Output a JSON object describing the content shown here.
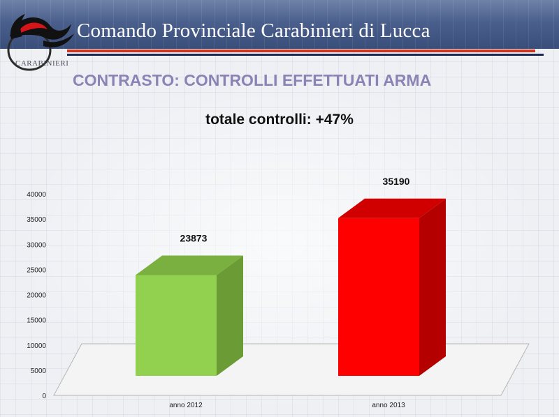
{
  "header": {
    "title": "Comando Provinciale Carabinieri di Lucca",
    "logo_text": "CARABINIERI",
    "logo_icon": "carabinieri-flame-emblem-icon"
  },
  "subtitle": "CONTRASTO: CONTROLLI EFFETTUATI ARMA",
  "colors": {
    "header": "#4a5f8c",
    "subtitle": "#8c82b6",
    "stripe_red": "#d5321d",
    "stripe_navy": "#1b2a55",
    "bar_2012": "#92d050",
    "bar_2013": "#ff0000"
  },
  "chart_data": {
    "type": "bar",
    "title": "totale controlli: +47%",
    "categories": [
      "anno 2012",
      "anno 2013"
    ],
    "values": [
      23873,
      35190
    ],
    "data_labels": [
      "23873",
      "35190"
    ],
    "yticks": [
      "0",
      "5000",
      "10000",
      "15000",
      "20000",
      "25000",
      "30000",
      "35000",
      "40000"
    ],
    "ylim": [
      0,
      40000
    ],
    "grid": false,
    "legend": "none",
    "style": "3d"
  }
}
